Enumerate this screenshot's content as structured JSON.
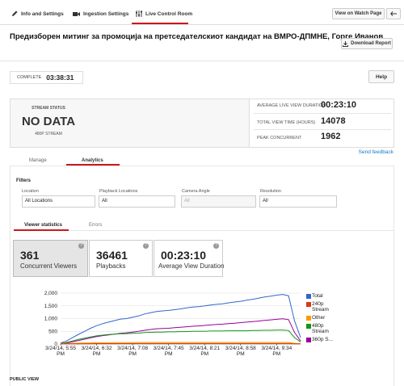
{
  "tabs": [
    "Info and Settings",
    "Ingestion Settings",
    "Live Control Room"
  ],
  "watch_button": "View on Watch Page",
  "title": "Предизборен митинг за промоција на претседателскиот кандидат на ВМРО-ДПМНЕ, Горге Иванов",
  "download_button": "Download Report",
  "status": {
    "label": "COMPLETE",
    "time": "03:38:31"
  },
  "help_button": "Help",
  "stream": {
    "label": "STREAM STATUS",
    "status": "NO DATA",
    "quality": "480P STREAM"
  },
  "stats": [
    {
      "label": "AVERAGE LIVE VIEW DURATION",
      "value": "00:23:10"
    },
    {
      "label": "TOTAL VIEW TIME (HOURS)",
      "value": 14078
    },
    {
      "label": "PEAK CONCURRENT",
      "value": 1962
    }
  ],
  "feedback": "Send feedback",
  "section_tabs": [
    "Manage",
    "Analytics"
  ],
  "filters": {
    "title": "Filters",
    "fields": [
      {
        "label": "Location",
        "value": "All Locations"
      },
      {
        "label": "Playback Locations",
        "value": "All"
      },
      {
        "label": "Camera Angle",
        "value": "All"
      },
      {
        "label": "Resolution",
        "value": "All"
      }
    ]
  },
  "stat_tabs": [
    "Viewer statistics",
    "Errors"
  ],
  "metrics": [
    {
      "value": 361,
      "label": "Concurrent Viewers"
    },
    {
      "value": 36461,
      "label": "Playbacks"
    },
    {
      "value": "00:23:10",
      "label": "Average View Duration"
    }
  ],
  "chart_data": {
    "type": "line",
    "categories": [
      "3/24/14, 5:55 PM",
      null,
      null,
      null,
      null,
      null,
      "3/24/14, 6:32 PM",
      null,
      null,
      null,
      null,
      null,
      "3/24/14, 7:08 PM",
      null,
      null,
      null,
      null,
      null,
      "3/24/14, 7:45 PM",
      null,
      null,
      null,
      null,
      null,
      "3/24/14, 8:21 PM",
      null,
      null,
      null,
      null,
      null,
      "3/24/14, 8:58 PM",
      null,
      null,
      null,
      null,
      null,
      "3/24/14, 9:34 PM",
      null,
      null,
      null,
      null
    ],
    "series": [
      {
        "name": "Total",
        "color": "#3366cc",
        "values": [
          40,
          120,
          250,
          380,
          500,
          620,
          720,
          800,
          860,
          920,
          980,
          1000,
          1050,
          1100,
          1180,
          1230,
          1280,
          1300,
          1320,
          1350,
          1380,
          1420,
          1450,
          1470,
          1500,
          1530,
          1560,
          1580,
          1620,
          1650,
          1680,
          1720,
          1760,
          1800,
          1850,
          1880,
          1920,
          1950,
          1900,
          900,
          250
        ]
      },
      {
        "name": "240p Stream",
        "color": "#dc3912",
        "values": [
          2,
          5,
          8,
          10,
          12,
          14,
          15,
          15,
          16,
          16,
          17,
          17,
          18,
          18,
          18,
          18,
          19,
          19,
          19,
          19,
          20,
          20,
          20,
          20,
          20,
          20,
          20,
          20,
          20,
          20,
          20,
          20,
          20,
          20,
          20,
          20,
          20,
          20,
          20,
          10,
          5
        ]
      },
      {
        "name": "Other",
        "color": "#ff9900",
        "values": [
          5,
          15,
          25,
          35,
          40,
          45,
          50,
          50,
          50,
          55,
          55,
          55,
          55,
          60,
          60,
          60,
          60,
          60,
          60,
          60,
          60,
          60,
          60,
          60,
          60,
          60,
          60,
          60,
          60,
          60,
          60,
          60,
          60,
          60,
          60,
          60,
          60,
          60,
          60,
          30,
          10
        ]
      },
      {
        "name": "480p Stream",
        "color": "#109618",
        "values": [
          20,
          60,
          120,
          180,
          230,
          280,
          320,
          350,
          370,
          390,
          400,
          410,
          420,
          430,
          450,
          460,
          470,
          470,
          480,
          480,
          490,
          490,
          500,
          500,
          500,
          510,
          510,
          510,
          520,
          520,
          520,
          520,
          530,
          530,
          540,
          540,
          550,
          550,
          530,
          250,
          80
        ]
      },
      {
        "name": "360p S...",
        "color": "#990099",
        "values": [
          10,
          40,
          90,
          140,
          190,
          240,
          290,
          330,
          360,
          390,
          420,
          440,
          470,
          500,
          540,
          570,
          600,
          610,
          620,
          640,
          660,
          680,
          700,
          710,
          730,
          750,
          770,
          780,
          800,
          820,
          840,
          860,
          880,
          900,
          930,
          950,
          970,
          990,
          960,
          450,
          120
        ]
      }
    ],
    "ylim": [
      0,
      2000
    ],
    "yticks": [
      0,
      500,
      {
        "value": 1000,
        "label": "1,000"
      },
      {
        "value": 1500,
        "label": "1,500"
      },
      {
        "value": 2000,
        "label": "2,000"
      }
    ],
    "grid": true,
    "legend": "right"
  },
  "footer": "PUBLIC VIEW"
}
